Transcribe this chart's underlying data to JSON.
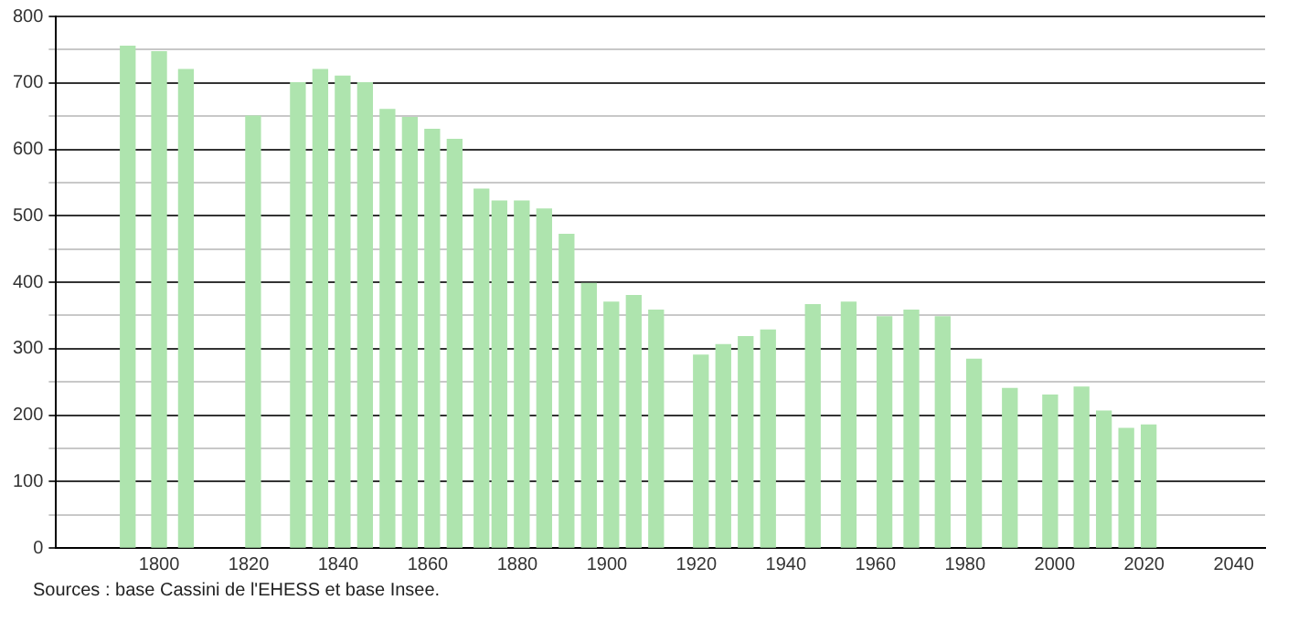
{
  "chart_data": {
    "type": "bar",
    "x": [
      1793,
      1800,
      1806,
      1821,
      1831,
      1836,
      1841,
      1846,
      1851,
      1856,
      1861,
      1866,
      1872,
      1876,
      1881,
      1886,
      1891,
      1896,
      1901,
      1906,
      1911,
      1921,
      1926,
      1931,
      1936,
      1946,
      1954,
      1962,
      1968,
      1975,
      1982,
      1990,
      1999,
      2006,
      2011,
      2016,
      2021
    ],
    "values": [
      755,
      747,
      720,
      650,
      700,
      720,
      710,
      700,
      660,
      648,
      630,
      615,
      540,
      522,
      522,
      510,
      472,
      398,
      370,
      380,
      358,
      290,
      306,
      318,
      328,
      366,
      370,
      348,
      358,
      348,
      284,
      240,
      230,
      242,
      206,
      180,
      185
    ],
    "color": "#aee4ae",
    "xlim": [
      1777,
      2047
    ],
    "xticks": [
      1800,
      1820,
      1840,
      1860,
      1880,
      1900,
      1920,
      1940,
      1960,
      1980,
      2000,
      2020,
      2040
    ],
    "ylim": [
      0,
      800
    ],
    "yticks": [
      0,
      {
        "value": 50,
        "label": null
      },
      100,
      {
        "value": 150,
        "label": null
      },
      200,
      {
        "value": 250,
        "label": null
      },
      300,
      {
        "value": 350,
        "label": null
      },
      400,
      {
        "value": 450,
        "label": null
      },
      500,
      {
        "value": 550,
        "label": null
      },
      600,
      {
        "value": 650,
        "label": null
      },
      700,
      {
        "value": 750,
        "label": null
      },
      800
    ],
    "grid": "y",
    "annotations": [
      "Sources : base Cassini de l'EHESS et base Insee."
    ]
  }
}
